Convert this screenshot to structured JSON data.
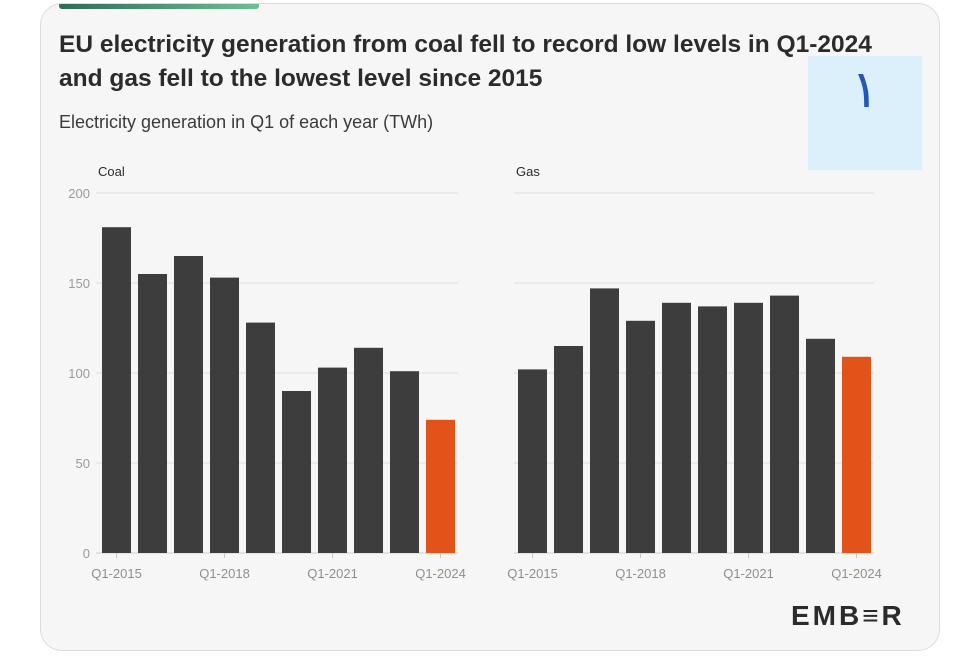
{
  "title": "EU electricity generation from coal fell to record low levels in Q1-2024 and gas fell to the lowest level since 2015",
  "subtitle": "Electricity generation in Q1 of each year (TWh)",
  "overlay_glyph": "١",
  "logo_text": "EMB≡R",
  "colors": {
    "bar": "#3d3d3d",
    "highlight": "#e2531a",
    "accent": "#3a8f6e"
  },
  "chart_data": [
    {
      "type": "bar",
      "title": "Coal",
      "ylabel": "",
      "ylim": [
        0,
        200
      ],
      "yticks": [
        0,
        50,
        100,
        150,
        200
      ],
      "categories": [
        "Q1-2015",
        "Q1-2016",
        "Q1-2017",
        "Q1-2018",
        "Q1-2019",
        "Q1-2020",
        "Q1-2021",
        "Q1-2022",
        "Q1-2023",
        "Q1-2024"
      ],
      "xtick_labels": [
        "Q1-2015",
        "Q1-2018",
        "Q1-2021",
        "Q1-2024"
      ],
      "values": [
        181,
        155,
        165,
        153,
        128,
        90,
        103,
        114,
        101,
        74
      ],
      "highlight_index": 9,
      "grid": true
    },
    {
      "type": "bar",
      "title": "Gas",
      "ylabel": "",
      "ylim": [
        0,
        200
      ],
      "yticks": [
        0,
        50,
        100,
        150,
        200
      ],
      "categories": [
        "Q1-2015",
        "Q1-2016",
        "Q1-2017",
        "Q1-2018",
        "Q1-2019",
        "Q1-2020",
        "Q1-2021",
        "Q1-2022",
        "Q1-2023",
        "Q1-2024"
      ],
      "xtick_labels": [
        "Q1-2015",
        "Q1-2018",
        "Q1-2021",
        "Q1-2024"
      ],
      "values": [
        102,
        115,
        147,
        129,
        139,
        137,
        139,
        143,
        119,
        109
      ],
      "highlight_index": 9,
      "grid": true
    }
  ]
}
